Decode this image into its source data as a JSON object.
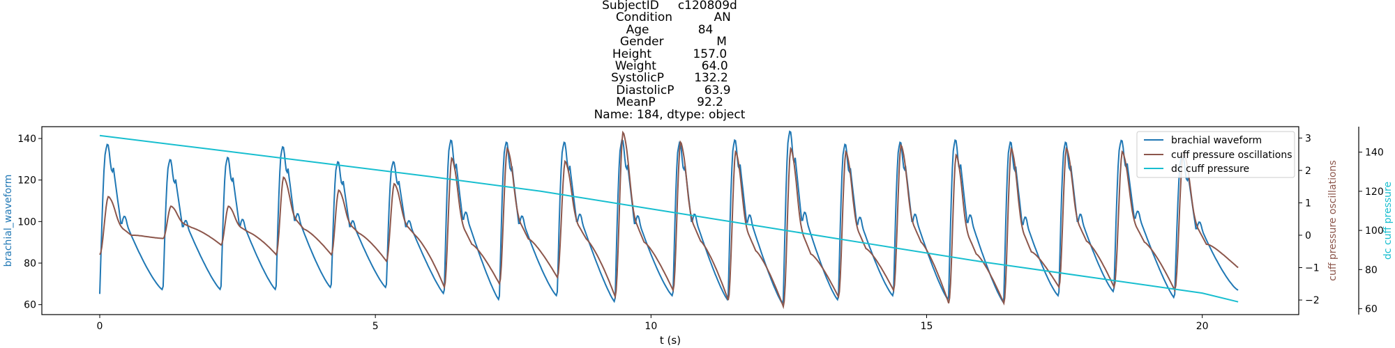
{
  "title_lines": [
    "SubjectID     c120809d",
    "  Condition           AN",
    "Age             84",
    "  Gender              M",
    "Height           157.0",
    " Weight            64.0",
    "SystolicP        132.2",
    "  DiastolicP        63.9",
    "MeanP           92.2",
    "Name: 184, dtype: object"
  ],
  "chart_data": {
    "type": "line",
    "xlabel": "t (s)",
    "xlim": [
      -1.05,
      21.75
    ],
    "xticks": [
      0,
      5,
      10,
      15,
      20
    ],
    "axes": [
      {
        "label": "brachial_waveform",
        "ylim": [
          55.2,
          145.7
        ],
        "ticks": [
          60,
          80,
          100,
          120,
          140
        ],
        "side": "left",
        "color": "#1f77b4"
      },
      {
        "label": "cuff pressure oscillations",
        "ylim": [
          -2.45,
          3.35
        ],
        "ticks": [
          -2,
          -1,
          0,
          1,
          2,
          3
        ],
        "side": "right",
        "color": "#8c564b"
      },
      {
        "label": "dc cuff pressure",
        "ylim": [
          57.0,
          153.0
        ],
        "ticks": [
          60,
          80,
          100,
          120,
          140
        ],
        "side": "right-outer",
        "color": "#17becf"
      }
    ],
    "legend": {
      "position": "top-right",
      "entries": [
        "brachial waveform",
        "cuff pressure oscillations",
        "dc cuff pressure"
      ]
    },
    "beats": {
      "t_start": [
        0.0,
        1.15,
        2.2,
        3.2,
        4.2,
        5.2,
        6.25,
        7.25,
        8.3,
        9.35,
        10.4,
        11.4,
        12.4,
        13.4,
        14.4,
        15.4,
        16.4,
        17.4,
        18.4,
        19.5
      ],
      "brachial_min": [
        63,
        67,
        67,
        67,
        68,
        68,
        65,
        62,
        64,
        61,
        64,
        62,
        60,
        62,
        64,
        62,
        61,
        64,
        66,
        63
      ],
      "brachial_peak": [
        135,
        128,
        129,
        134,
        127,
        127,
        137,
        136,
        136,
        137,
        136,
        137,
        141,
        135,
        136,
        137,
        136,
        136,
        137,
        130
      ],
      "osc_min": [
        -0.6,
        -0.1,
        -0.3,
        -0.6,
        -0.6,
        -0.8,
        -1.6,
        -1.5,
        -1.3,
        -1.9,
        -1.7,
        -2.0,
        -2.2,
        -1.9,
        -1.7,
        -2.1,
        -2.1,
        -1.6,
        -1.6,
        -1.7
      ],
      "osc_peak": [
        1.2,
        0.9,
        0.9,
        1.8,
        1.4,
        1.6,
        2.4,
        2.7,
        2.3,
        3.2,
        2.9,
        2.6,
        2.7,
        2.6,
        2.8,
        2.5,
        2.7,
        2.7,
        2.6,
        2.6
      ]
    },
    "brachial_end": [
      20.65,
      67
    ],
    "osc_end": [
      20.65,
      -1.0
    ],
    "dc_cuff_pressure": {
      "x": [
        0,
        2,
        4,
        6,
        8,
        10,
        12,
        14,
        16,
        18,
        20,
        20.65
      ],
      "y": [
        148.5,
        141.5,
        134.5,
        127.5,
        120,
        111,
        102,
        93,
        84,
        76,
        68,
        63.5
      ]
    }
  }
}
